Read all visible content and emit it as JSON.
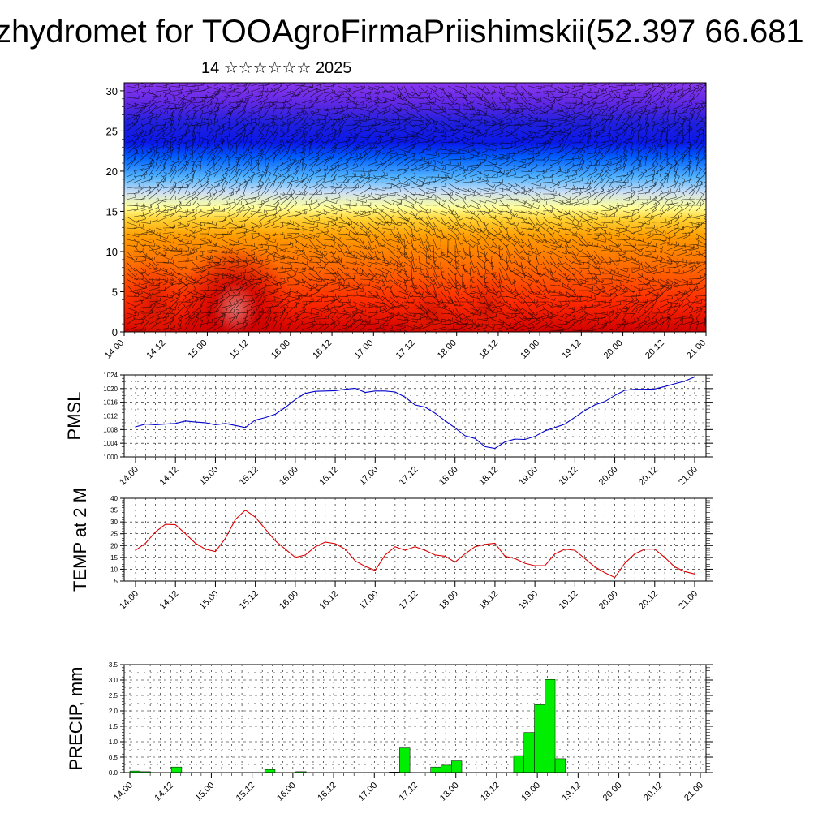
{
  "title": "zhydromet for TOOAgroFirmaPriishimskii(52.397 66.681",
  "subtitle": "14 ☆☆☆☆☆☆ 2025",
  "time_labels": [
    "14.00",
    "14.12",
    "15.00",
    "15.12",
    "16.00",
    "16.12",
    "17.00",
    "17.12",
    "18.00",
    "18.12",
    "19.00",
    "19.12",
    "20.00",
    "20.12",
    "21.00"
  ],
  "colors": {
    "pmsl_line": "#0000cc",
    "temp_line": "#dd0000",
    "precip_bar": "#00ee00",
    "wind_barb": "#000000"
  },
  "chart_data": [
    {
      "type": "heatmap",
      "name": "",
      "x_labels": [
        "14.00",
        "14.12",
        "15.00",
        "15.12",
        "16.00",
        "16.12",
        "17.00",
        "17.12",
        "18.00",
        "18.12",
        "19.00",
        "19.12",
        "20.00",
        "20.12",
        "21.00"
      ],
      "y_ticks": [
        0,
        5,
        10,
        15,
        20,
        25,
        30
      ],
      "ylim": [
        0,
        31
      ],
      "colormap": [
        "#cc0000",
        "#ff3300",
        "#ff7700",
        "#ffaa00",
        "#ffdd44",
        "#ffffaa",
        "#bbddff",
        "#33aaff",
        "#0055ff",
        "#1111dd",
        "#5522dd",
        "#8833ee"
      ],
      "overlay": "wind-barbs"
    },
    {
      "type": "line",
      "ylabel": "PMSL",
      "ylim": [
        1000,
        1024
      ],
      "y_ticks": [
        1000,
        1004,
        1008,
        1012,
        1016,
        1020,
        1024
      ],
      "x_labels": [
        "14.00",
        "14.12",
        "15.00",
        "15.12",
        "16.00",
        "16.12",
        "17.00",
        "17.12",
        "18.00",
        "18.12",
        "19.00",
        "19.12",
        "20.00",
        "20.12",
        "21.00"
      ],
      "values": [
        1008.8,
        1009.6,
        1009.4,
        1009.6,
        1009.8,
        1010.5,
        1010.2,
        1010.0,
        1009.4,
        1009.8,
        1009.2,
        1008.6,
        1010.8,
        1011.5,
        1012.5,
        1014.5,
        1016.8,
        1018.6,
        1019.2,
        1019.3,
        1019.4,
        1019.8,
        1020.1,
        1018.9,
        1019.3,
        1019.3,
        1019.0,
        1017.5,
        1015.2,
        1014.6,
        1012.8,
        1010.6,
        1008.5,
        1006.2,
        1005.4,
        1003.0,
        1002.5,
        1004.4,
        1005.2,
        1005.1,
        1006.0,
        1007.6,
        1008.6,
        1009.6,
        1011.6,
        1013.6,
        1015.2,
        1016.2,
        1018.0,
        1019.5,
        1019.8,
        1019.8,
        1019.9,
        1020.6,
        1021.4,
        1022.2,
        1023.4
      ]
    },
    {
      "type": "line",
      "ylabel": "TEMP at 2 M",
      "ylim": [
        5,
        40
      ],
      "y_ticks": [
        5,
        10,
        15,
        20,
        25,
        30,
        35,
        40
      ],
      "x_labels": [
        "14.00",
        "14.12",
        "15.00",
        "15.12",
        "16.00",
        "16.12",
        "17.00",
        "17.12",
        "18.00",
        "18.12",
        "19.00",
        "19.12",
        "20.00",
        "20.12",
        "21.00"
      ],
      "values": [
        18.0,
        21.0,
        25.8,
        29.0,
        28.8,
        25.0,
        21.0,
        18.5,
        17.5,
        23.0,
        31.0,
        35.0,
        32.0,
        27.0,
        22.0,
        18.5,
        15.0,
        16.0,
        19.5,
        21.5,
        20.8,
        18.5,
        13.5,
        11.2,
        9.5,
        16.0,
        19.5,
        18.0,
        19.5,
        18.0,
        16.0,
        15.5,
        13.0,
        16.5,
        19.5,
        20.5,
        21.0,
        15.5,
        14.5,
        12.5,
        11.5,
        11.5,
        16.5,
        18.5,
        18.0,
        14.5,
        11.0,
        8.5,
        6.5,
        12.5,
        16.5,
        18.5,
        18.5,
        15.0,
        11.0,
        9.0,
        8.0
      ]
    },
    {
      "type": "bar",
      "ylabel": "PRECIP, mm",
      "ylim": [
        0,
        3.5
      ],
      "y_ticks": [
        0.0,
        0.5,
        1.0,
        1.5,
        2.0,
        2.5,
        3.0,
        3.5
      ],
      "x_labels": [
        "14.00",
        "14.12",
        "15.00",
        "15.12",
        "16.00",
        "16.12",
        "17.00",
        "17.12",
        "18.00",
        "18.12",
        "19.00",
        "19.12",
        "20.00",
        "20.12",
        "21.00"
      ],
      "values": [
        0.05,
        0.03,
        0,
        0,
        0.18,
        0,
        0,
        0,
        0,
        0,
        0,
        0,
        0,
        0.1,
        0,
        0,
        0.03,
        0,
        0,
        0,
        0,
        0,
        0,
        0,
        0,
        0.02,
        0.8,
        0,
        0,
        0.18,
        0.24,
        0.38,
        0,
        0,
        0,
        0,
        0,
        0.55,
        1.3,
        2.2,
        3.02,
        0.45,
        0,
        0,
        0,
        0,
        0,
        0,
        0,
        0,
        0,
        0,
        0,
        0,
        0,
        0
      ]
    }
  ]
}
